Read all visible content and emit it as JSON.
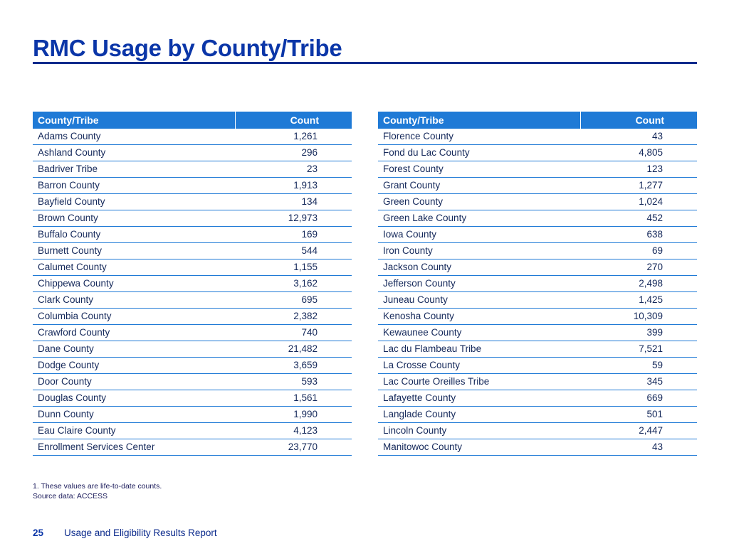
{
  "title": "RMC Usage by County/Tribe",
  "accent_color": "#1f7ad6",
  "title_color": "#0b36a8",
  "left_table": {
    "headers": [
      "County/Tribe",
      "Count"
    ],
    "rows": [
      [
        "Adams County",
        "1,261"
      ],
      [
        "Ashland County",
        "296"
      ],
      [
        "Badriver Tribe",
        "23"
      ],
      [
        "Barron County",
        "1,913"
      ],
      [
        "Bayfield County",
        "134"
      ],
      [
        "Brown County",
        "12,973"
      ],
      [
        "Buffalo County",
        "169"
      ],
      [
        "Burnett County",
        "544"
      ],
      [
        "Calumet County",
        "1,155"
      ],
      [
        "Chippewa County",
        "3,162"
      ],
      [
        "Clark County",
        "695"
      ],
      [
        "Columbia County",
        "2,382"
      ],
      [
        "Crawford County",
        "740"
      ],
      [
        "Dane County",
        "21,482"
      ],
      [
        "Dodge County",
        "3,659"
      ],
      [
        "Door County",
        "593"
      ],
      [
        "Douglas County",
        "1,561"
      ],
      [
        "Dunn County",
        "1,990"
      ],
      [
        "Eau Claire County",
        "4,123"
      ],
      [
        "Enrollment Services Center",
        "23,770"
      ]
    ]
  },
  "right_table": {
    "headers": [
      "County/Tribe",
      "Count"
    ],
    "rows": [
      [
        "Florence County",
        "43"
      ],
      [
        "Fond du Lac County",
        "4,805"
      ],
      [
        "Forest County",
        "123"
      ],
      [
        "Grant County",
        "1,277"
      ],
      [
        "Green County",
        "1,024"
      ],
      [
        "Green Lake County",
        "452"
      ],
      [
        "Iowa County",
        "638"
      ],
      [
        "Iron County",
        "69"
      ],
      [
        "Jackson County",
        "270"
      ],
      [
        "Jefferson County",
        "2,498"
      ],
      [
        "Juneau County",
        "1,425"
      ],
      [
        "Kenosha County",
        "10,309"
      ],
      [
        "Kewaunee County",
        "399"
      ],
      [
        "Lac du Flambeau Tribe",
        "7,521"
      ],
      [
        "La Crosse County",
        "59"
      ],
      [
        "Lac Courte Oreilles Tribe",
        "345"
      ],
      [
        "Lafayette County",
        "669"
      ],
      [
        "Langlade County",
        "501"
      ],
      [
        "Lincoln County",
        "2,447"
      ],
      [
        "Manitowoc County",
        "43"
      ]
    ]
  },
  "footnote": {
    "line1": "1. These values are life-to-date counts.",
    "line2": "Source data: ACCESS"
  },
  "footer": {
    "page_number": "25",
    "report_title": "Usage and Eligibility Results Report"
  }
}
